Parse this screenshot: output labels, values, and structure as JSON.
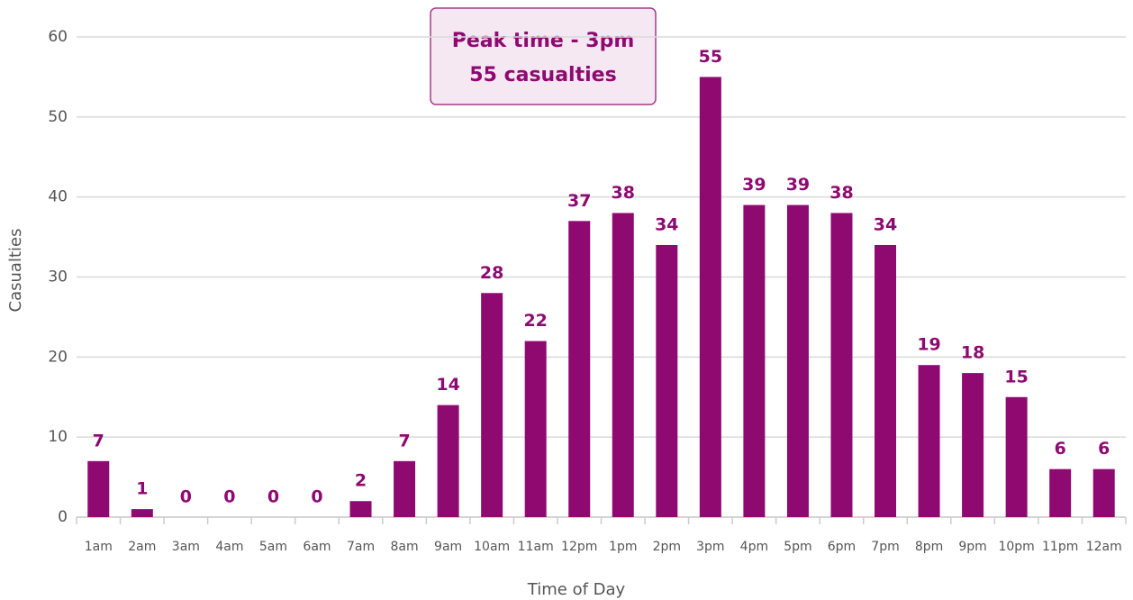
{
  "chart_data": {
    "type": "bar",
    "categories": [
      "1am",
      "2am",
      "3am",
      "4am",
      "5am",
      "6am",
      "7am",
      "8am",
      "9am",
      "10am",
      "11am",
      "12pm",
      "1pm",
      "2pm",
      "3pm",
      "4pm",
      "5pm",
      "6pm",
      "7pm",
      "8pm",
      "9pm",
      "10pm",
      "11pm",
      "12am"
    ],
    "values": [
      7,
      1,
      0,
      0,
      0,
      0,
      2,
      7,
      14,
      28,
      22,
      37,
      38,
      34,
      55,
      39,
      39,
      38,
      34,
      19,
      18,
      15,
      6,
      6
    ],
    "color": "#8e0a70",
    "ylim": [
      0,
      60
    ],
    "yticks": [
      0,
      10,
      20,
      30,
      40,
      50,
      60
    ],
    "grid": true,
    "x_label": "Time of Day",
    "y_label": "Casualties",
    "annotation": [
      "Peak time - 3pm",
      "55 casualties"
    ]
  }
}
